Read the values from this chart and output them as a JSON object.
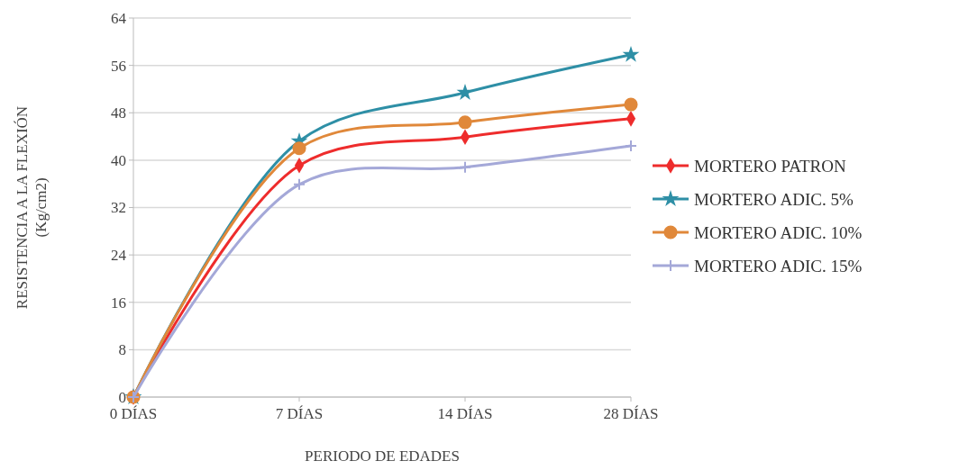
{
  "chart_data": {
    "type": "line",
    "xlabel": "PERIODO DE EDADES",
    "ylabel": "RESISTENCIA  A LA FLEXIÓN\n(Kg/cm2)",
    "categories": [
      "0 DÍAS",
      "7 DÍAS",
      "14 DÍAS",
      "28 DÍAS"
    ],
    "series": [
      {
        "name": "MORTERO  PATRON",
        "color": "#ee2c2c",
        "marker": "diamond",
        "values": [
          0,
          39.1,
          43.9,
          47.0
        ]
      },
      {
        "name": "MORTERO ADIC. 5%",
        "color": "#2e8fa6",
        "marker": "star",
        "values": [
          0,
          43.2,
          51.4,
          57.8
        ]
      },
      {
        "name": "MORTERO ADIC. 10%",
        "color": "#e0883a",
        "marker": "circle",
        "values": [
          0,
          42.0,
          46.4,
          49.4
        ]
      },
      {
        "name": "MORTERO ADIC. 15%",
        "color": "#a4a8d8",
        "marker": "cross",
        "values": [
          0,
          35.9,
          38.8,
          42.4
        ]
      }
    ],
    "ylim": [
      0,
      64
    ],
    "yticks": [
      0,
      8,
      16,
      24,
      32,
      40,
      48,
      56,
      64
    ],
    "grid": "y",
    "legend": "right",
    "line_style": "solid"
  }
}
